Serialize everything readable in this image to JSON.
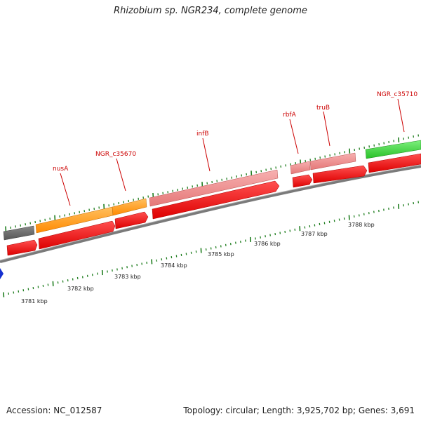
{
  "title": "Rhizobium sp. NGR234, complete genome",
  "footer": {
    "accession": "Accession: NC_012587",
    "summary": "Topology: circular; Length: 3,925,702 bp; Genes: 3,691"
  },
  "gene_labels": {
    "nusA": "nusA",
    "ngr_c35670": "NGR_c35670",
    "infB": "infB",
    "rbfA": "rbfA",
    "truB": "truB",
    "ngr_c35710": "NGR_c35710"
  },
  "position_labels": [
    "3781 kbp",
    "3782 kbp",
    "3783 kbp",
    "3784 kbp",
    "3785 kbp",
    "3786 kbp",
    "3787 kbp",
    "3788 kbp"
  ],
  "colors": {
    "backbone": "#8c8c8c",
    "gene_orange": "#ff9a00",
    "gene_pink": "#f08b8b",
    "gene_green": "#39d339",
    "gene_grey": "#666666",
    "cds_red": "#ee1111",
    "partial_blue": "#1530d0",
    "tick_green": "#1e7d1e",
    "label_red": "#cc0000"
  }
}
